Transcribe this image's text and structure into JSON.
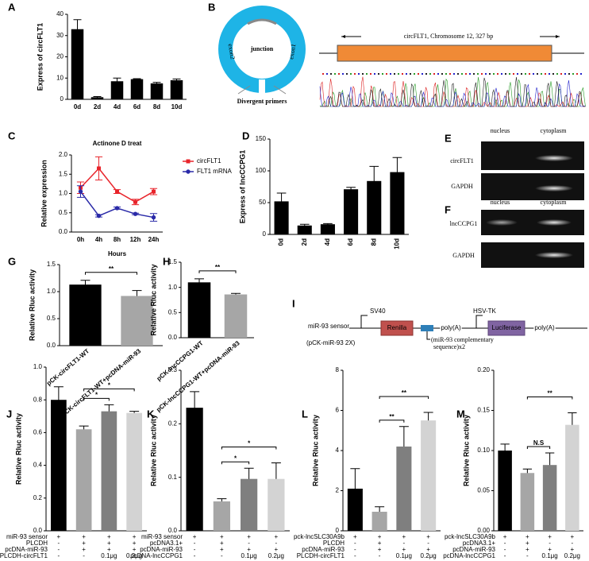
{
  "chart_data": [
    {
      "type": "bar",
      "letter": "A",
      "ylabel": "Express of circFLT1",
      "categories": [
        "0d",
        "2d",
        "4d",
        "6d",
        "8d",
        "10d"
      ],
      "values": [
        33,
        1,
        8.5,
        9.5,
        7.5,
        9
      ],
      "errors": [
        4.5,
        0.3,
        1.5,
        0.2,
        0.5,
        0.6
      ],
      "color": "#000000",
      "ylim": [
        0,
        40
      ],
      "yticks": [
        0,
        10,
        20,
        30,
        40
      ]
    },
    {
      "type": "line",
      "letter": "C",
      "title": "Actinone D treat",
      "xlabel": "Hours",
      "ylabel": "Relative  expression",
      "categories": [
        "0h",
        "4h",
        "8h",
        "12h",
        "24h"
      ],
      "series": [
        {
          "name": "circFLT1",
          "color": "#e8242b",
          "values": [
            1.15,
            1.65,
            1.05,
            0.78,
            1.05
          ],
          "errors": [
            0.15,
            0.3,
            0.05,
            0.07,
            0.08
          ]
        },
        {
          "name": "FLT1 mRNA",
          "color": "#2a2aa8",
          "values": [
            1.05,
            0.42,
            0.62,
            0.47,
            0.38
          ],
          "errors": [
            0.15,
            0.03,
            0.03,
            0.02,
            0.1
          ]
        }
      ],
      "ylim": [
        0,
        2
      ],
      "yticks": [
        {
          "value": 0,
          "label": "0.0"
        },
        0.5,
        {
          "value": 1,
          "label": "1.0"
        },
        1.5,
        {
          "value": 2,
          "label": "2.0"
        }
      ]
    },
    {
      "type": "bar",
      "letter": "D",
      "ylabel": "Express of lncCCPG1",
      "categories": [
        "0d",
        "2d",
        "4d",
        "6d",
        "8d",
        "10d"
      ],
      "values": [
        52,
        14,
        16,
        71,
        84,
        98
      ],
      "errors": [
        13,
        2,
        1,
        3,
        23,
        23
      ],
      "color": "#000000",
      "ylim": [
        0,
        150
      ],
      "yticks": [
        0,
        50,
        100,
        150
      ]
    },
    {
      "type": "bar",
      "letter": "G",
      "ylabel": "Relative Rluc activity",
      "categories": [
        "pCK-circFLT1-WT",
        "pCK-circFLT1-WT+pcDNA-miR-93"
      ],
      "values": [
        1.13,
        0.92
      ],
      "errors": [
        0.08,
        0.1
      ],
      "colors": [
        "#000000",
        "#a6a6a6"
      ],
      "ylim": [
        0,
        1.5
      ],
      "yticks": [
        {
          "value": 0,
          "label": "0.0"
        },
        0.5,
        {
          "value": 1,
          "label": "1.0"
        },
        1.5
      ],
      "annotations": [
        "**"
      ]
    },
    {
      "type": "bar",
      "letter": "H",
      "ylabel": "Relative Rluc activity",
      "categories": [
        "pCK-lncCCPG1-WT",
        "pCK-lncCCPG1-WT+pcDNA-miR-93"
      ],
      "values": [
        1.1,
        0.86
      ],
      "errors": [
        0.07,
        0.02
      ],
      "colors": [
        "#000000",
        "#a6a6a6"
      ],
      "ylim": [
        0,
        1.5
      ],
      "yticks": [
        {
          "value": 0,
          "label": "0.0"
        },
        0.5,
        {
          "value": 1,
          "label": "1.0"
        },
        1.5
      ],
      "annotations": [
        "**"
      ]
    },
    {
      "type": "bar",
      "letter": "J",
      "ylabel": "Relative Rluc activity",
      "values": [
        0.8,
        0.62,
        0.73,
        0.72
      ],
      "errors": [
        0.08,
        0.02,
        0.04,
        0.01
      ],
      "colors": [
        "#000000",
        "#a6a6a6",
        "#7f7f7f",
        "#d3d3d3"
      ],
      "ylim": [
        0,
        1
      ],
      "yticks": [
        {
          "value": 0,
          "label": "0.0"
        },
        0.2,
        0.4,
        0.6,
        0.8,
        {
          "value": 1,
          "label": "1.0"
        }
      ],
      "annotations": [
        "*",
        "*"
      ],
      "conditions": [
        {
          "label": "miR-93 sensor",
          "values": [
            "+",
            "+",
            "+",
            "+"
          ]
        },
        {
          "label": "PLCDH",
          "values": [
            "-",
            "+",
            "+",
            "+"
          ]
        },
        {
          "label": "pcDNA-miR-93",
          "values": [
            "-",
            "+",
            "+",
            "+"
          ]
        },
        {
          "label": "PLCDH-circFLT1",
          "values": [
            "-",
            "-",
            "0.1μg",
            "0.2μg"
          ]
        }
      ]
    },
    {
      "type": "bar",
      "letter": "K",
      "ylabel": "Relative Rluc activity",
      "values": [
        0.23,
        0.055,
        0.097,
        0.097
      ],
      "errors": [
        0.03,
        0.005,
        0.02,
        0.03
      ],
      "colors": [
        "#000000",
        "#a6a6a6",
        "#7f7f7f",
        "#d3d3d3"
      ],
      "ylim": [
        0,
        0.3
      ],
      "yticks": [
        {
          "value": 0,
          "label": "0.0"
        },
        0.1,
        0.2,
        0.3
      ],
      "annotations": [
        "*",
        "*"
      ],
      "conditions": [
        {
          "label": "miR-93 sensor",
          "values": [
            "+",
            "+",
            "+",
            "+"
          ]
        },
        {
          "label": "pcDNA3.1+",
          "values": [
            "-",
            "+",
            "-",
            "-"
          ]
        },
        {
          "label": "pcDNA-miR-93",
          "values": [
            "-",
            "+",
            "+",
            "+"
          ]
        },
        {
          "label": "pcDNA-lncCCPG1",
          "values": [
            "-",
            "-",
            "0.1μg",
            "0.2μg"
          ]
        }
      ]
    },
    {
      "type": "bar",
      "letter": "L",
      "ylabel": "Relative Rluc activity",
      "values": [
        2.1,
        0.95,
        4.2,
        5.5
      ],
      "errors": [
        1,
        0.25,
        1,
        0.4
      ],
      "colors": [
        "#000000",
        "#a6a6a6",
        "#7f7f7f",
        "#d3d3d3"
      ],
      "ylim": [
        0,
        8
      ],
      "yticks": [
        0,
        2,
        4,
        6,
        8
      ],
      "annotations": [
        "**",
        "**"
      ],
      "conditions": [
        {
          "label": "pck-lncSLC30A9b",
          "values": [
            "+",
            "+",
            "+",
            "+"
          ]
        },
        {
          "label": "PLCDH",
          "values": [
            "-",
            "+",
            "-",
            "-"
          ]
        },
        {
          "label": "pcDNA-miR-93",
          "values": [
            "-",
            "+",
            "+",
            "+"
          ]
        },
        {
          "label": "PLCDH-circFLT1",
          "values": [
            "-",
            "-",
            "0.1μg",
            "0.2μg"
          ]
        }
      ]
    },
    {
      "type": "bar",
      "letter": "M",
      "ylabel": "Relative Rluc activity",
      "values": [
        0.1,
        0.072,
        0.082,
        0.132
      ],
      "errors": [
        0.008,
        0.005,
        0.015,
        0.015
      ],
      "colors": [
        "#000000",
        "#a6a6a6",
        "#7f7f7f",
        "#d3d3d3"
      ],
      "ylim": [
        0,
        0.2
      ],
      "yticks": [
        {
          "value": 0,
          "label": "0.00"
        },
        0.05,
        {
          "value": 0.1,
          "label": "0.10"
        },
        0.15,
        {
          "value": 0.2,
          "label": "0.20"
        }
      ],
      "annotations": [
        "N.S",
        "**"
      ],
      "conditions": [
        {
          "label": "pck-lncSLC30A9b",
          "values": [
            "+",
            "+",
            "+",
            "+"
          ]
        },
        {
          "label": "pcDNA3.1+",
          "values": [
            "-",
            "+",
            "-",
            "-"
          ]
        },
        {
          "label": "pcDNA-miR-93",
          "values": [
            "-",
            "+",
            "+",
            "+"
          ]
        },
        {
          "label": "pcDNA-lncCCPG1",
          "values": [
            "-",
            "-",
            "0.1μg",
            "0.2μg"
          ]
        }
      ]
    }
  ],
  "panel_B": {
    "letter": "B",
    "ring_center": "junction",
    "exon_left": "exon2",
    "exon_right": "exon1",
    "primers": "Divergent primers",
    "track_title": "circFLT1, Chromosome 12, 327 bp"
  },
  "panel_E": {
    "letter": "E",
    "columns": [
      "nucleus",
      "cytoplasm"
    ],
    "rows": [
      "circFLT1",
      "GAPDH"
    ]
  },
  "panel_F": {
    "letter": "F",
    "columns": [
      "nucleus",
      "cytoplasm"
    ],
    "rows": [
      "lncCCPG1",
      "GAPDH"
    ]
  },
  "panel_I": {
    "letter": "I",
    "construct": "miR-93 sensor",
    "plasmid": "(pCK-miR-93  2X)",
    "promoter1": "SV40",
    "promoter2": "HSV-TK",
    "gene1": "Renilla",
    "gene2": "Luciferase",
    "polyA1": "poly(A)",
    "polyA2": "poly(A)",
    "site_note": [
      "(miR-93 complementary",
      "sequence)x2"
    ]
  }
}
